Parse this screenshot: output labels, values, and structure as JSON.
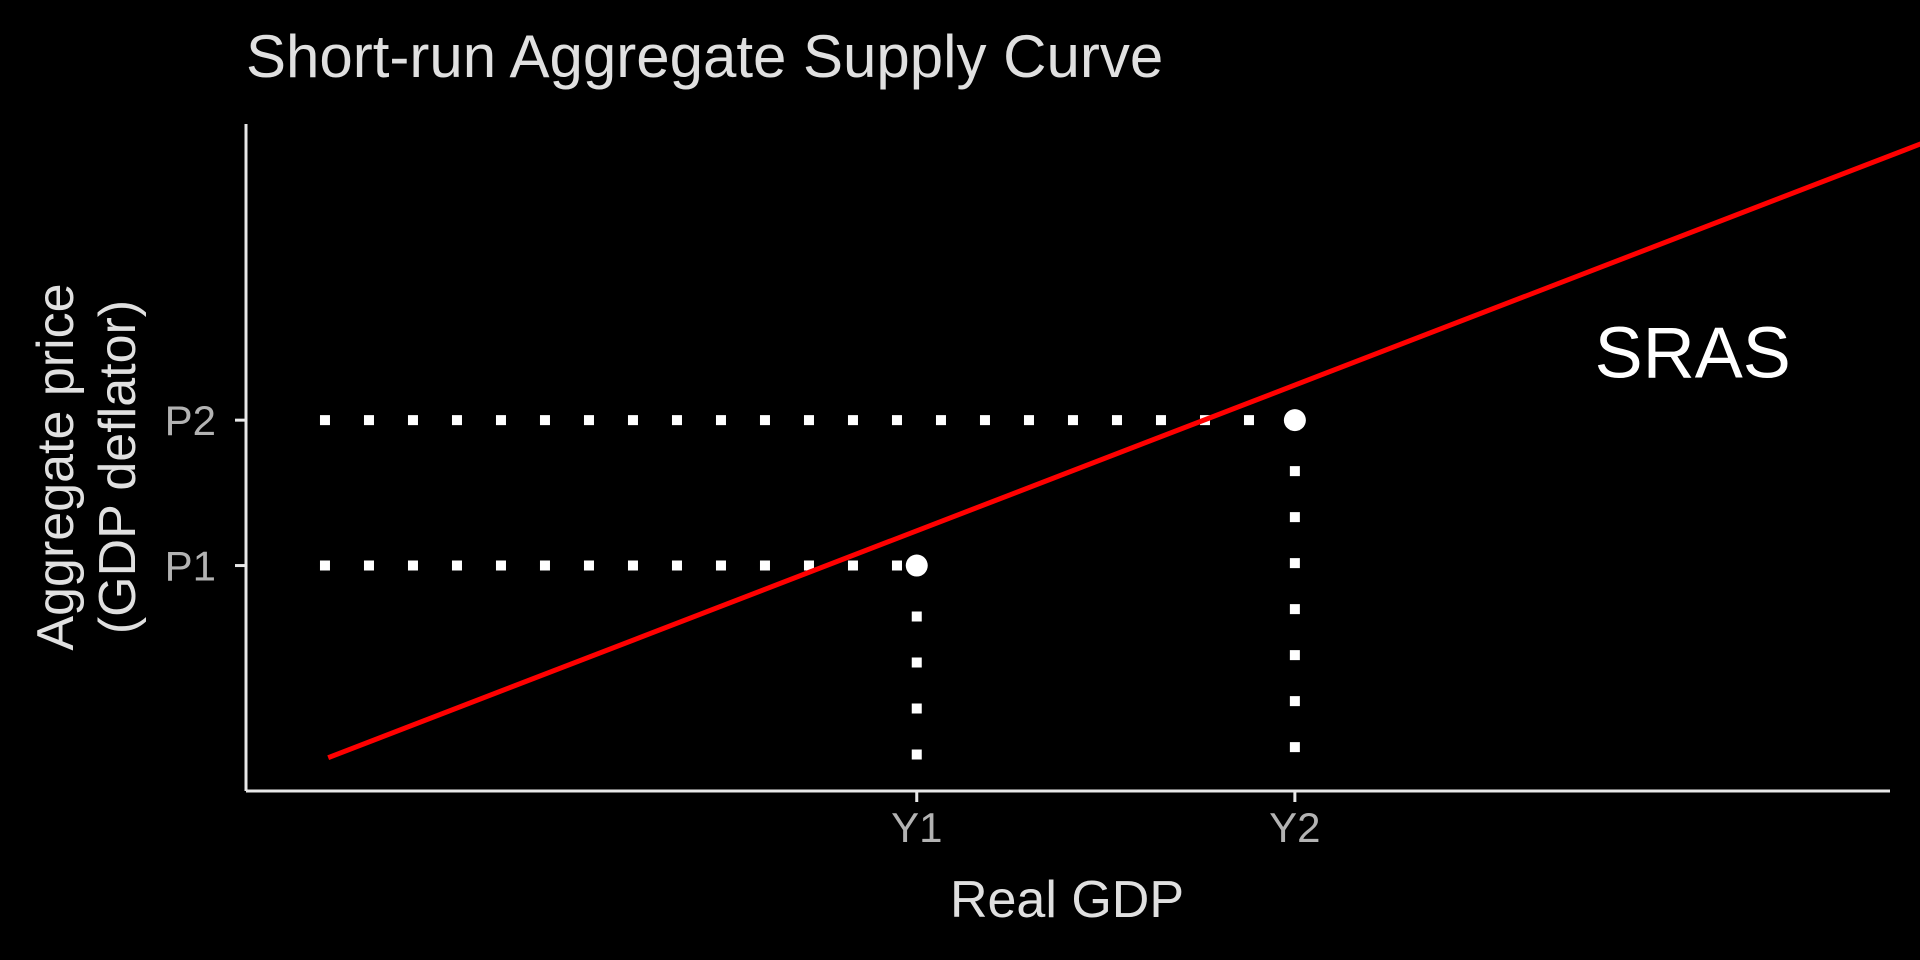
{
  "chart_data": {
    "type": "line",
    "title": "Short-run Aggregate Supply Curve",
    "xlabel": "Real GDP",
    "ylabel_lines": [
      "Aggregate price",
      "(GDP deflator)"
    ],
    "xlim": [
      0,
      10
    ],
    "ylim": [
      0,
      10
    ],
    "grid": false,
    "legend": "none",
    "series": [
      {
        "x": [
          0.5,
          10.5
        ],
        "y": [
          0.5,
          10.0
        ],
        "color": "#ff0000"
      }
    ],
    "x_ticks": [
      {
        "label": "Y1",
        "value": 4.08
      },
      {
        "label": "Y2",
        "value": 6.38
      }
    ],
    "y_ticks": [
      {
        "label": "P1",
        "value": 3.38
      },
      {
        "label": "P2",
        "value": 5.56
      }
    ],
    "points": [
      {
        "x": 4.08,
        "y": 3.38
      },
      {
        "x": 6.38,
        "y": 5.56
      }
    ],
    "annotations": [
      {
        "text": "SRAS",
        "x": 8.8,
        "y": 6.2
      }
    ],
    "colors": {
      "background": "#000000",
      "axis": "#e8e8e8",
      "curve": "#ff0000",
      "guides": "#ffffff",
      "points": "#ffffff"
    }
  }
}
